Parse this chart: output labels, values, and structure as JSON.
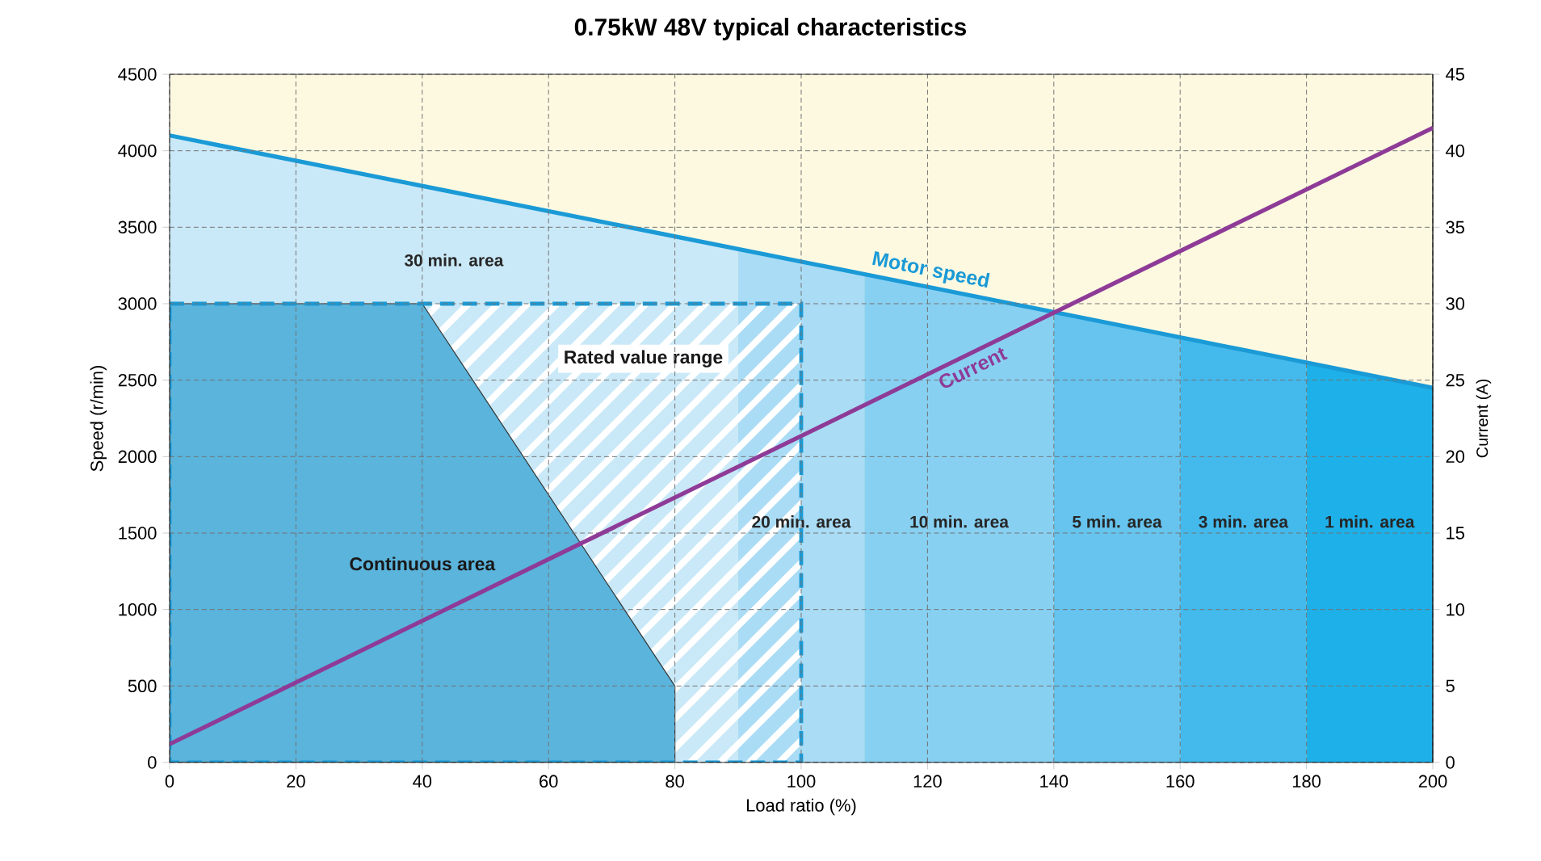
{
  "chart_data": {
    "type": "line",
    "title": "0.75kW 48V typical characteristics",
    "xlabel": "Load ratio (%)",
    "ylabel": "Speed (r/min)",
    "y2label": "Current (A)",
    "x": [
      0,
      200
    ],
    "xlim": [
      0,
      200
    ],
    "xticks": [
      0,
      20,
      40,
      60,
      80,
      100,
      120,
      140,
      160,
      180,
      200
    ],
    "ylim": [
      0,
      4500
    ],
    "yticks": [
      0,
      500,
      1000,
      1500,
      2000,
      2500,
      3000,
      3500,
      4000,
      4500
    ],
    "y2lim": [
      0,
      45
    ],
    "y2ticks": [
      0,
      5,
      10,
      15,
      20,
      25,
      30,
      35,
      40,
      45
    ],
    "grid": true,
    "series": [
      {
        "name": "Motor speed",
        "color": "#1a9ad6",
        "values": [
          4100,
          2450
        ]
      },
      {
        "name": "Current",
        "color": "#8e3b97",
        "axis": "y2",
        "values": [
          1.2,
          41.5
        ]
      },
      {
        "name": "Continuous area",
        "type": "area",
        "color": "#5ab4dc",
        "x": [
          0,
          40,
          80
        ],
        "values": [
          3000,
          3000,
          500
        ]
      },
      {
        "name": "Rated value range",
        "type": "area",
        "color": "#1a9ad6",
        "line_style": "dashed",
        "x": [
          0,
          100
        ],
        "values": [
          3000,
          3000
        ]
      }
    ],
    "bands": [
      {
        "axis": "x",
        "from": 0,
        "to": 90,
        "label": "30 min. area",
        "color": "#cae9f8"
      },
      {
        "axis": "x",
        "from": 90,
        "to": 110,
        "label": "20 min. area",
        "color": "#aadcf5"
      },
      {
        "axis": "x",
        "from": 110,
        "to": 140,
        "label": "10 min. area",
        "color": "#88d0f2"
      },
      {
        "axis": "x",
        "from": 140,
        "to": 160,
        "label": "5 min. area",
        "color": "#66c4ef"
      },
      {
        "axis": "x",
        "from": 160,
        "to": 180,
        "label": "3 min. area",
        "color": "#44b9ec"
      },
      {
        "axis": "x",
        "from": 180,
        "to": 200,
        "label": "1 min. area",
        "color": "#1eb0e8"
      }
    ]
  }
}
